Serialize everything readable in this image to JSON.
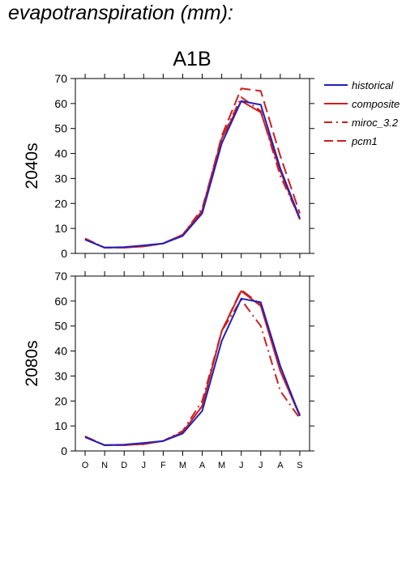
{
  "page_title": "evapotranspiration (mm):",
  "scenario_title": "A1B",
  "colors": {
    "historical": "#2020c0",
    "composite": "#cc1f1f",
    "miroc_3.2": "#cc1f1f",
    "pcm1": "#cc1f1f"
  },
  "legend": [
    {
      "name": "historical",
      "style": "solid",
      "color": "#2020c0"
    },
    {
      "name": "composite",
      "style": "solid",
      "color": "#cc1f1f"
    },
    {
      "name": "miroc_3.2",
      "style": "dashdot",
      "color": "#cc1f1f"
    },
    {
      "name": "pcm1",
      "style": "dashed",
      "color": "#cc1f1f"
    }
  ],
  "chart_data": [
    {
      "type": "line",
      "ylabel": "2040s",
      "categories": [
        "O",
        "N",
        "D",
        "J",
        "F",
        "M",
        "A",
        "M",
        "J",
        "J",
        "A",
        "S"
      ],
      "ylim": [
        0,
        70
      ],
      "yticks": [
        0,
        10,
        20,
        30,
        40,
        50,
        60,
        70
      ],
      "series": [
        {
          "name": "historical",
          "style": "solid",
          "values": [
            5.5,
            2.3,
            2.5,
            3.2,
            4,
            7,
            16,
            44,
            61,
            59.5,
            34,
            14
          ]
        },
        {
          "name": "composite",
          "style": "solid",
          "values": [
            5.5,
            2.3,
            2.4,
            3,
            4,
            7.5,
            17,
            46,
            61,
            56.5,
            33,
            13.5
          ]
        },
        {
          "name": "miroc_3.2",
          "style": "dashdot",
          "values": [
            6,
            2.3,
            2.3,
            2.8,
            4,
            7.5,
            18,
            46,
            62.5,
            57,
            31,
            14
          ]
        },
        {
          "name": "pcm1",
          "style": "dashed",
          "values": [
            5.8,
            2.3,
            2.3,
            2.8,
            4,
            7.5,
            17,
            47,
            66,
            65,
            39,
            16
          ]
        }
      ]
    },
    {
      "type": "line",
      "ylabel": "2080s",
      "categories": [
        "O",
        "N",
        "D",
        "J",
        "F",
        "M",
        "A",
        "M",
        "J",
        "J",
        "A",
        "S"
      ],
      "ylim": [
        0,
        70
      ],
      "yticks": [
        0,
        10,
        20,
        30,
        40,
        50,
        60,
        70
      ],
      "series": [
        {
          "name": "historical",
          "style": "solid",
          "values": [
            5.5,
            2.3,
            2.5,
            3.2,
            4,
            7,
            16,
            44,
            61,
            59.5,
            34,
            14
          ]
        },
        {
          "name": "composite",
          "style": "solid",
          "values": [
            5.5,
            2.3,
            2.4,
            3,
            4,
            7.5,
            18,
            48,
            64,
            58,
            32,
            14
          ]
        },
        {
          "name": "miroc_3.2",
          "style": "dashdot",
          "values": [
            5.8,
            2.3,
            2.3,
            2.7,
            4,
            8,
            20,
            48,
            60.5,
            50,
            24,
            13
          ]
        },
        {
          "name": "pcm1",
          "style": "dashed",
          "values": [
            5.8,
            2.3,
            2.3,
            2.8,
            4,
            7.5,
            18,
            48,
            64.5,
            58.5,
            32,
            14.5
          ]
        }
      ]
    }
  ]
}
